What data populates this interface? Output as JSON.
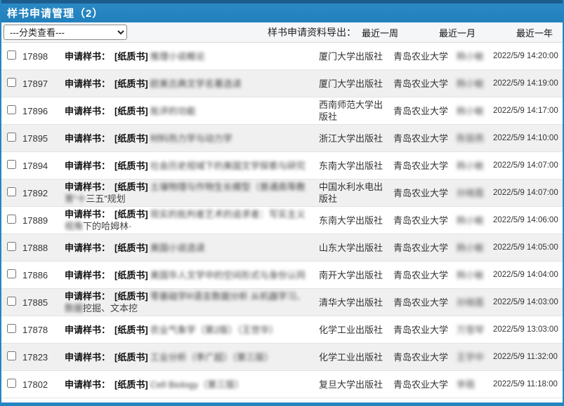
{
  "header": {
    "title": "样书申请管理（2）"
  },
  "toolbar": {
    "filter_value": "---分类查看---",
    "export_label": "样书申请资料导出：",
    "links": {
      "week": "最近一周",
      "month": "最近一月",
      "year": "最近一年"
    }
  },
  "colors": {
    "accent": "#2585c1",
    "top_strip": "#1d5d8e",
    "alt_row_background": "#f0f0f1",
    "header_text": "#ffffff"
  },
  "table": {
    "row_label": "申请样书：",
    "format_tag": "[纸质书]",
    "rows": [
      {
        "id": "17898",
        "title_blurred": "推理小说概论",
        "title_clear": "",
        "publisher": "厦门大学出版社",
        "university": "青岛农业大学",
        "applicant": "韩小敏",
        "time": "2022/5/9 14:20:00"
      },
      {
        "id": "17897",
        "title_blurred": "欧美古典文学名著选读",
        "title_clear": "",
        "publisher": "厦门大学出版社",
        "university": "青岛农业大学",
        "applicant": "韩小敏",
        "time": "2022/5/9 14:19:00"
      },
      {
        "id": "17896",
        "title_blurred": "批评的功能",
        "title_clear": "",
        "publisher": "西南师范大学出版社",
        "university": "青岛农业大学",
        "applicant": "韩小敏",
        "time": "2022/5/9 14:17:00"
      },
      {
        "id": "17895",
        "title_blurred": "材料热力学与动力学",
        "title_clear": "",
        "publisher": "浙江大学出版社",
        "university": "青岛农业大学",
        "applicant": "陈丽燕",
        "time": "2022/5/9 14:10:00"
      },
      {
        "id": "17894",
        "title_blurred": "社会历史视域下的美国文学探索与研究",
        "title_clear": "",
        "publisher": "东南大学出版社",
        "university": "青岛农业大学",
        "applicant": "韩小敏",
        "time": "2022/5/9 14:07:00"
      },
      {
        "id": "17892",
        "title_blurred": "土壤物理与作物生长模型（普通高等教育“十",
        "title_clear": "三五”规划",
        "publisher": "中国水利水电出版社",
        "university": "青岛农业大学",
        "applicant": "孙晓霞",
        "time": "2022/5/9 14:07:00"
      },
      {
        "id": "17889",
        "title_blurred": "现实的批判者艺术的追求者：写实主义视角",
        "title_clear": "下的哈姆林·",
        "publisher": "东南大学出版社",
        "university": "青岛农业大学",
        "applicant": "韩小敏",
        "time": "2022/5/9 14:06:00"
      },
      {
        "id": "17888",
        "title_blurred": "美国小说选读",
        "title_clear": "",
        "publisher": "山东大学出版社",
        "university": "青岛农业大学",
        "applicant": "韩小敏",
        "time": "2022/5/9 14:05:00"
      },
      {
        "id": "17886",
        "title_blurred": "美国华人文学中的空间形式与身份认同",
        "title_clear": "",
        "publisher": "南开大学出版社",
        "university": "青岛农业大学",
        "applicant": "韩小敏",
        "time": "2022/5/9 14:04:00"
      },
      {
        "id": "17885",
        "title_blurred": "零基础学R语言数据分析 从机器学习、数据",
        "title_clear": "挖掘、文本挖",
        "publisher": "清华大学出版社",
        "university": "青岛农业大学",
        "applicant": "孙晓霞",
        "time": "2022/5/9 14:03:00"
      },
      {
        "id": "17878",
        "title_blurred": "农业气象学（第2版）（王世华）",
        "title_clear": "",
        "publisher": "化学工业出版社",
        "university": "青岛农业大学",
        "applicant": "万雪琴",
        "time": "2022/5/9 13:03:00"
      },
      {
        "id": "17823",
        "title_blurred": "工业分析（李广超）（第三版）",
        "title_clear": "",
        "publisher": "化学工业出版社",
        "university": "青岛农业大学",
        "applicant": "王学中",
        "time": "2022/5/9 11:32:00"
      },
      {
        "id": "17802",
        "title_blurred": "Cell Biology（第三版）",
        "title_clear": "",
        "publisher": "复旦大学出版社",
        "university": "青岛农业大学",
        "applicant": "李薇",
        "time": "2022/5/9 11:18:00"
      }
    ]
  }
}
